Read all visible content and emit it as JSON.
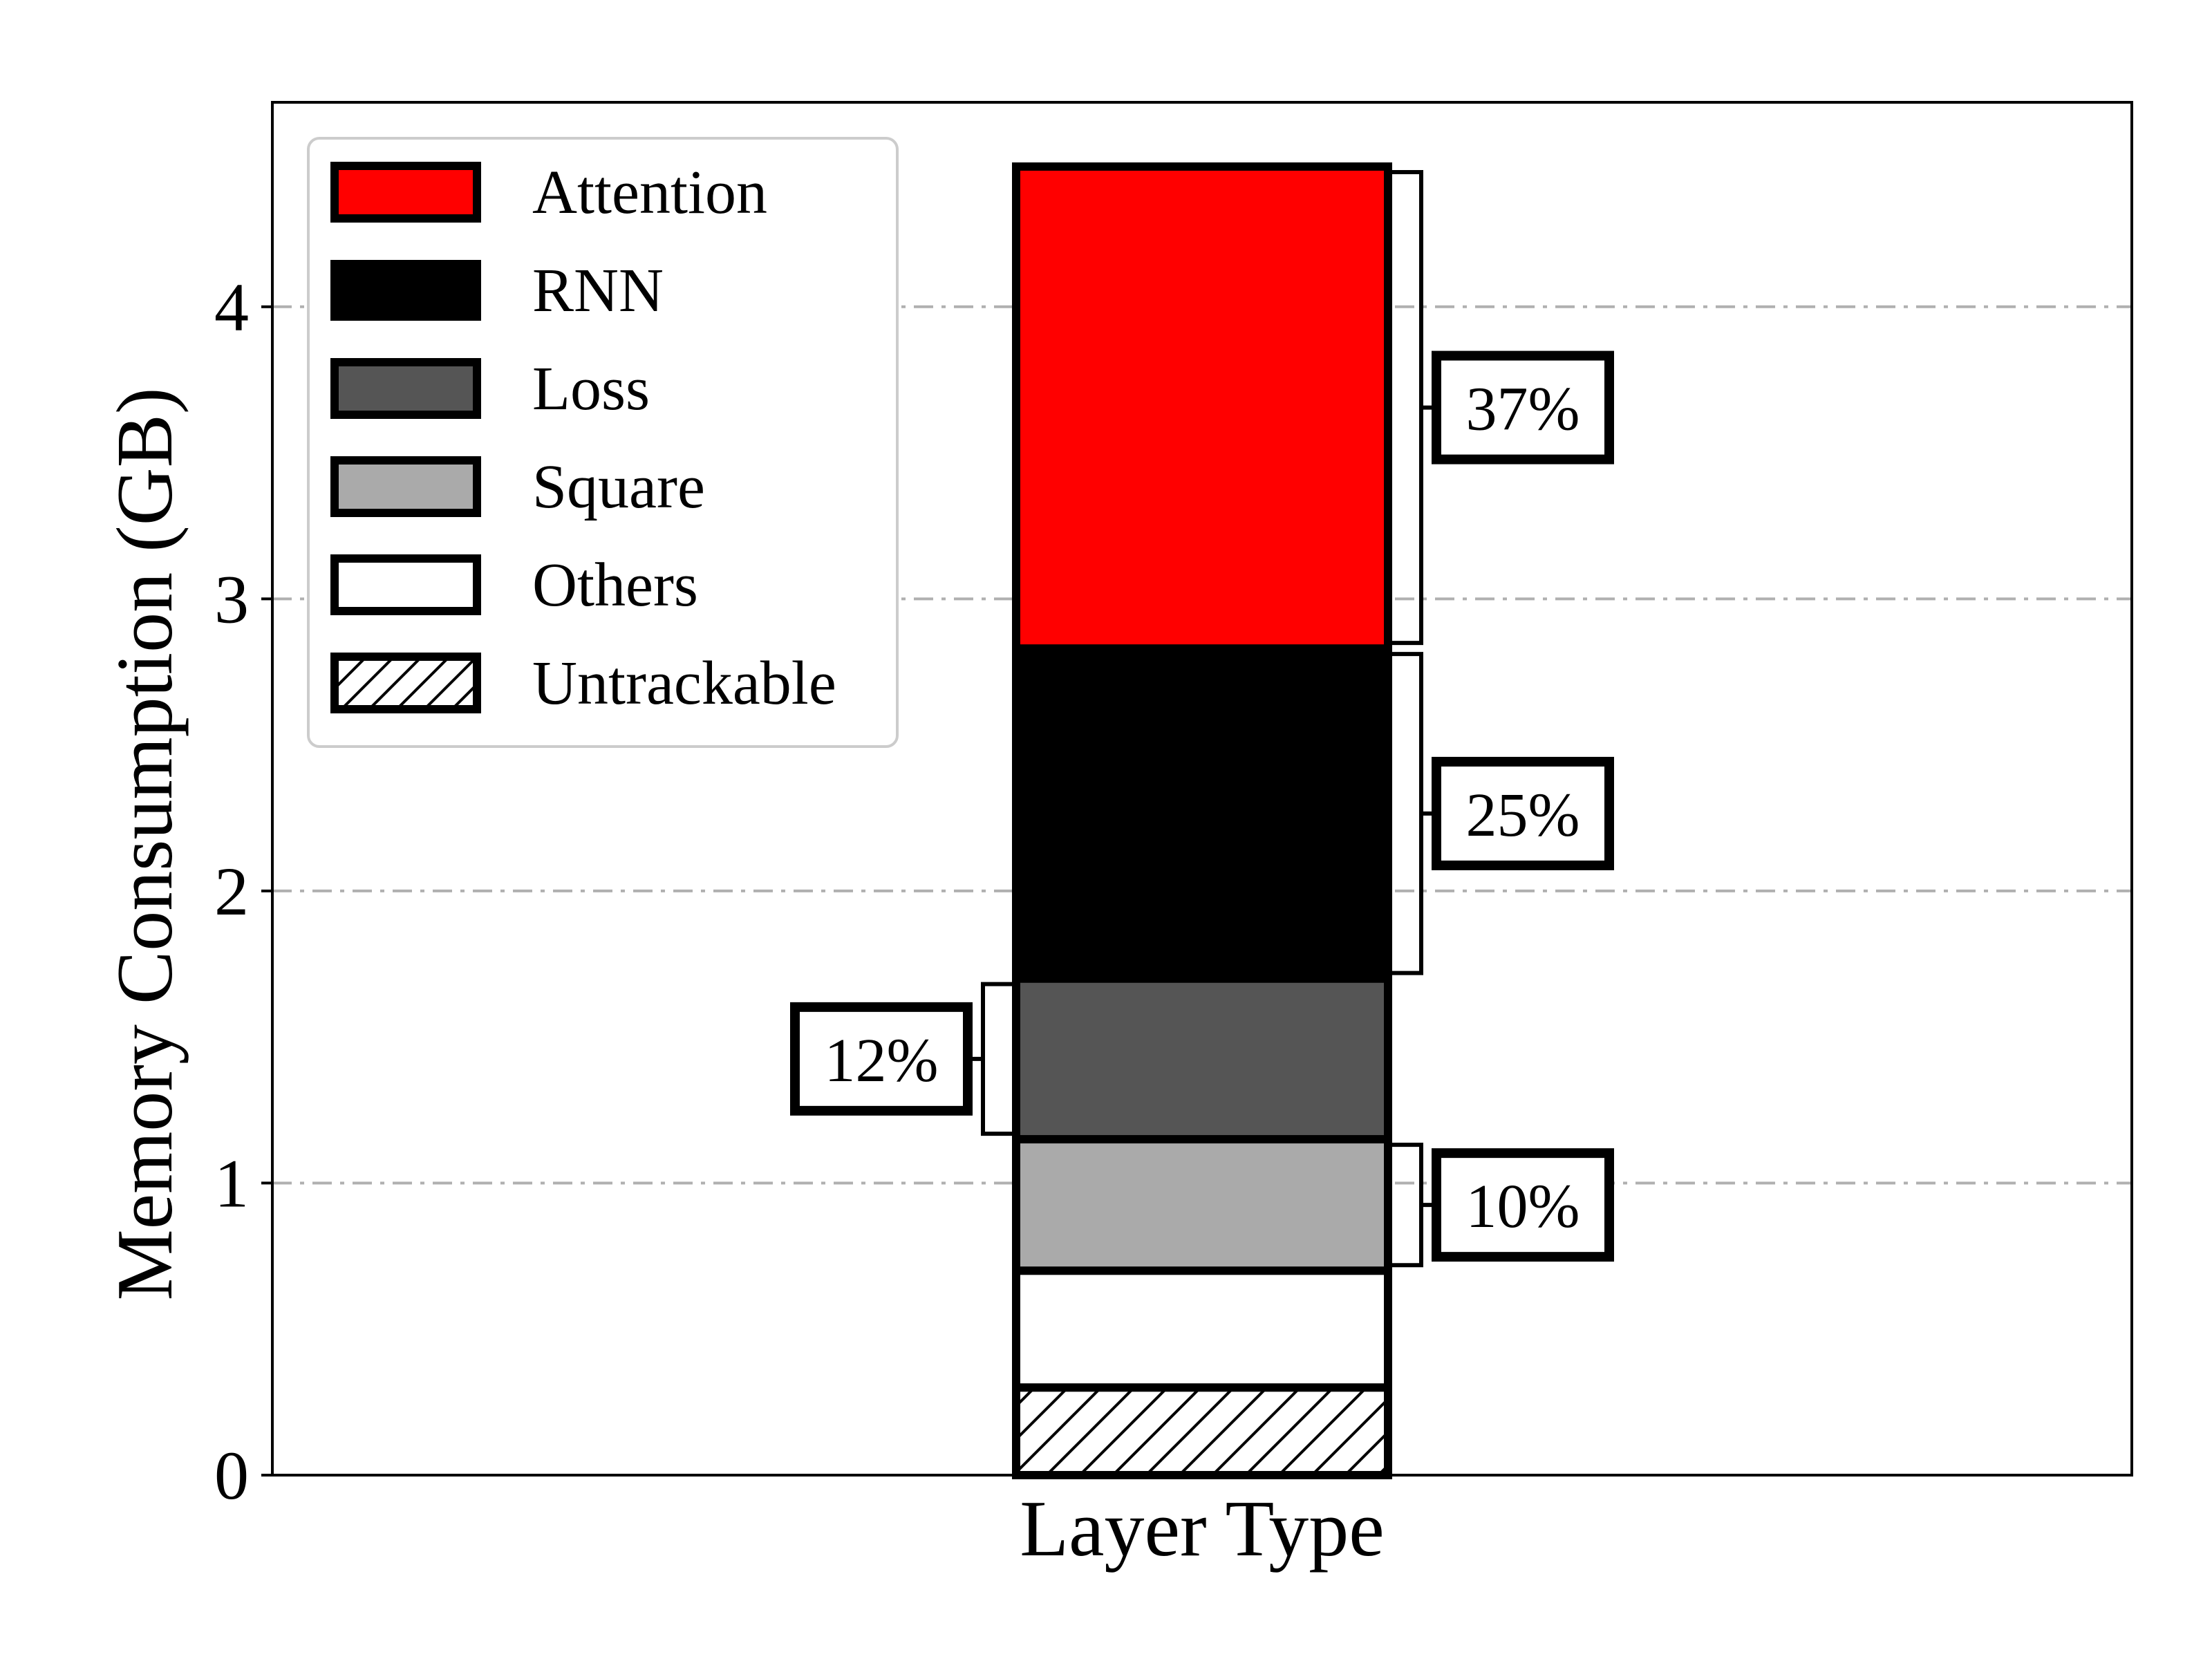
{
  "chart_data": {
    "type": "bar",
    "stacked": true,
    "categories": [
      ""
    ],
    "xlabel": "Layer Type",
    "ylabel": "Memory Consumption (GB)",
    "ylim": [
      0,
      4.7
    ],
    "yticks": [
      0,
      1,
      2,
      3,
      4
    ],
    "grid": "horizontal dash-dot",
    "legend_position": "top-left",
    "series": [
      {
        "name": "Untrackable",
        "values": [
          0.3
        ],
        "fill": "#ffffff",
        "hatch": true
      },
      {
        "name": "Others",
        "values": [
          0.4
        ],
        "fill": "#ffffff",
        "hatch": false
      },
      {
        "name": "Square",
        "values": [
          0.45
        ],
        "fill": "#aaaaaa",
        "hatch": false
      },
      {
        "name": "Loss",
        "values": [
          0.55
        ],
        "fill": "#555555",
        "hatch": false
      },
      {
        "name": "RNN",
        "values": [
          1.13
        ],
        "fill": "#000000",
        "hatch": false
      },
      {
        "name": "Attention",
        "values": [
          1.65
        ],
        "fill": "#ff0000",
        "hatch": false
      }
    ],
    "legend_order": [
      "Attention",
      "RNN",
      "Loss",
      "Square",
      "Others",
      "Untrackable"
    ],
    "annotations": [
      {
        "series": "Attention",
        "text": "37%",
        "side": "right"
      },
      {
        "series": "RNN",
        "text": "25%",
        "side": "right"
      },
      {
        "series": "Loss",
        "text": "12%",
        "side": "left"
      },
      {
        "series": "Square",
        "text": "10%",
        "side": "right"
      }
    ]
  }
}
